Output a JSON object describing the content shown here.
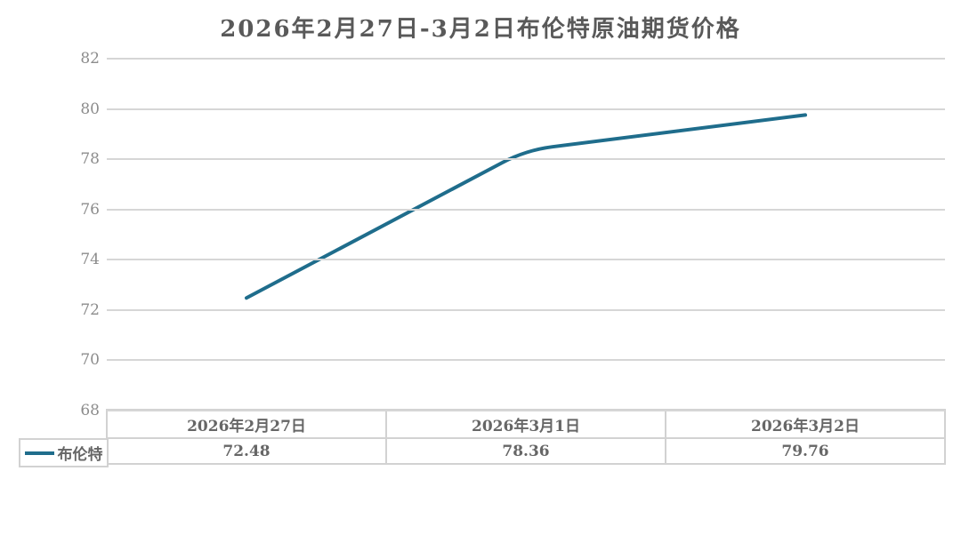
{
  "title": "2026年2月27日-3月2日布伦特原油期货价格",
  "colors": {
    "background": "#ffffff",
    "title_text": "#595959",
    "axis_text": "#8c8c8c",
    "table_text": "#666666",
    "gridline": "#d6d6d6",
    "table_border": "#d2d2d2",
    "series_line": "#1f6d8c"
  },
  "chart_data": {
    "type": "line",
    "title": "2026年2月27日-3月2日布伦特原油期货价格",
    "categories": [
      "2026年2月27日",
      "2026年3月1日",
      "2026年3月2日"
    ],
    "series": [
      {
        "name": "布伦特",
        "color": "#1f6d8c",
        "values": [
          72.48,
          78.36,
          79.76
        ]
      }
    ],
    "xlabel": "",
    "ylabel": "",
    "ylim": [
      68,
      82
    ],
    "yticks": [
      82,
      80,
      78,
      76,
      74,
      72,
      70,
      68
    ],
    "grid": "horizontal",
    "legend_position": "bottom-left-table-cell",
    "data_table_shown": true,
    "line_smoothing": "rounded-bends",
    "markers": "none"
  }
}
